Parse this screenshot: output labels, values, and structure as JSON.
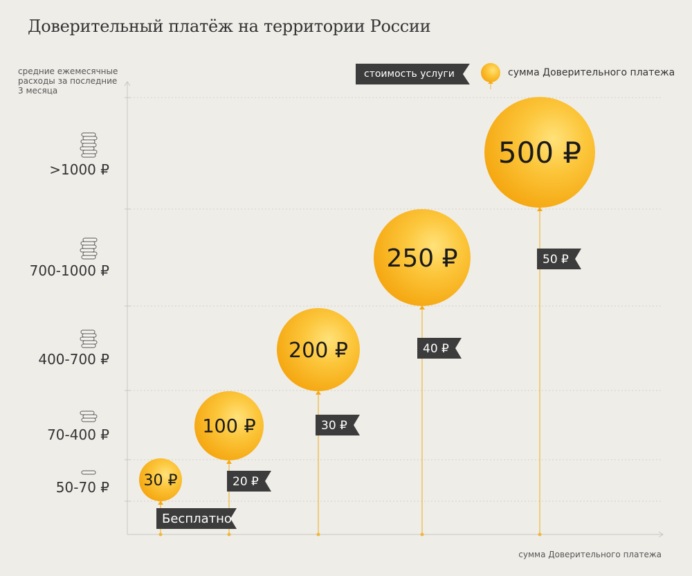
{
  "title": "Доверительный платёж на территории России",
  "y_caption": "средние ежемесячные расходы за последние 3 месяца",
  "x_caption": "сумма Доверительного платежа",
  "legend": {
    "cost_label": "стоимость услуги",
    "sum_label": "сумма Доверительного платежа"
  },
  "colors": {
    "background": "#efede8",
    "balloon": "#f8b318",
    "balloon_highlight": "#ffe27a",
    "tag": "#3c3c3c",
    "axis": "#c9c6bf",
    "string": "#f0b73a"
  },
  "icons": [
    "coins-stack-icon",
    "balloon-icon"
  ],
  "chart_data": {
    "type": "bubble",
    "title": "Доверительный платёж на территории России",
    "xlabel": "сумма Доверительного платежа",
    "ylabel": "средние ежемесячные расходы за последние 3 месяца",
    "y_categories": [
      "50-70 ₽",
      "70-400 ₽",
      "400-700 ₽",
      "700-1000 ₽",
      ">1000 ₽"
    ],
    "coin_counts": [
      1,
      3,
      5,
      6,
      7
    ],
    "series": [
      {
        "name": "сумма Доверительного платежа",
        "values": [
          "30 ₽",
          "100 ₽",
          "200 ₽",
          "250 ₽",
          "500 ₽"
        ],
        "amounts": [
          30,
          100,
          200,
          250,
          500
        ]
      },
      {
        "name": "стоимость услуги",
        "values": [
          "Бесплатно",
          "20 ₽",
          "30 ₽",
          "40 ₽",
          "50 ₽"
        ]
      }
    ],
    "legend_position": "top-right",
    "grid": true
  }
}
